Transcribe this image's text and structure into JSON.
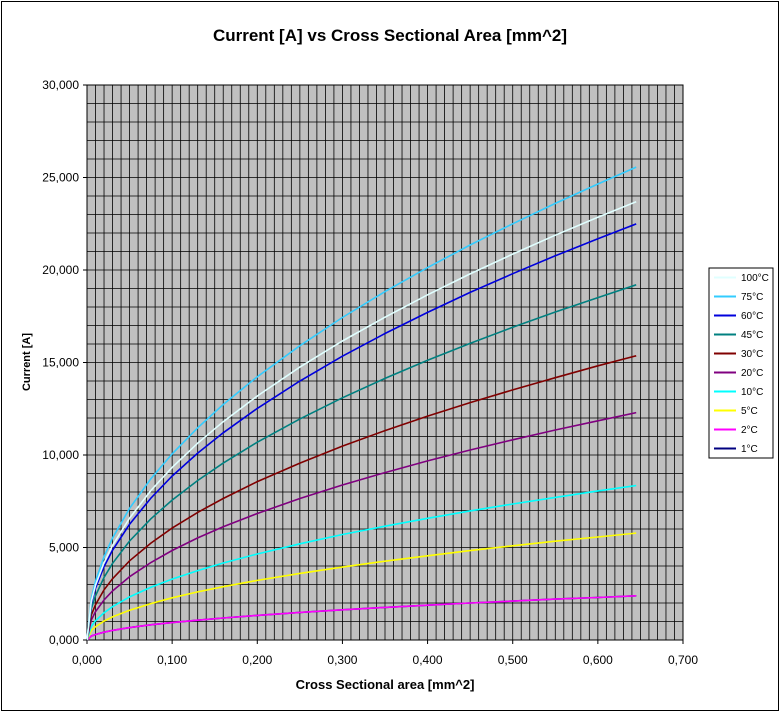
{
  "chart_data": {
    "type": "line",
    "title": "Current [A] vs Cross Sectional Area [mm^2]",
    "xlabel": "Cross Sectional area [mm^2]",
    "ylabel": "Current [A]",
    "xlim": [
      0,
      0.7
    ],
    "ylim": [
      0,
      30000
    ],
    "x_ticks": [
      "0,000",
      "0,100",
      "0,200",
      "0,300",
      "0,400",
      "0,500",
      "0,600",
      "0,700"
    ],
    "y_ticks": [
      "0,000",
      "5,000",
      "10,000",
      "15,000",
      "20,000",
      "25,000",
      "30,000"
    ],
    "grid": true,
    "plot_background": "#c0c0c0",
    "legend_position": "right",
    "x": [
      0.0,
      0.005,
      0.01,
      0.02,
      0.03,
      0.05,
      0.075,
      0.1,
      0.13,
      0.16,
      0.2,
      0.25,
      0.3,
      0.35,
      0.4,
      0.45,
      0.5,
      0.55,
      0.6,
      0.645
    ],
    "series": [
      {
        "name": "100°C",
        "color": "#e0ffff",
        "values": [
          0,
          2080,
          2950,
          4170,
          5110,
          6590,
          8080,
          9330,
          10640,
          11800,
          13190,
          14750,
          16160,
          17450,
          18660,
          19790,
          20860,
          21880,
          22850,
          23690
        ]
      },
      {
        "name": "75°C",
        "color": "#33ccff",
        "values": [
          0,
          2250,
          3180,
          4500,
          5510,
          7120,
          8720,
          10060,
          11470,
          12730,
          14230,
          15910,
          17430,
          18830,
          20130,
          21350,
          22500,
          23600,
          24650,
          25560
        ]
      },
      {
        "name": "60°C",
        "color": "#0000dd",
        "values": [
          0,
          1980,
          2800,
          3960,
          4850,
          6260,
          7670,
          8860,
          10100,
          11200,
          12520,
          14000,
          15340,
          16570,
          17710,
          18790,
          19800,
          20770,
          21690,
          22490
        ]
      },
      {
        "name": "45°C",
        "color": "#008080",
        "values": [
          0,
          1690,
          2390,
          3380,
          4140,
          5350,
          6550,
          7560,
          8620,
          9560,
          10690,
          11950,
          13090,
          14140,
          15120,
          16030,
          16900,
          17730,
          18510,
          19200
        ]
      },
      {
        "name": "30°C",
        "color": "#800000",
        "values": [
          0,
          1350,
          1910,
          2710,
          3310,
          4280,
          5240,
          6050,
          6900,
          7650,
          8560,
          9560,
          10480,
          11320,
          12100,
          12830,
          13520,
          14180,
          14820,
          15360
        ]
      },
      {
        "name": "20°C",
        "color": "#800080",
        "values": [
          0,
          1080,
          1530,
          2160,
          2650,
          3420,
          4190,
          4840,
          5520,
          6120,
          6840,
          7650,
          8380,
          9050,
          9680,
          10270,
          10820,
          11350,
          11850,
          12290
        ]
      },
      {
        "name": "10°C",
        "color": "#00ffff",
        "values": [
          0,
          740,
          1040,
          1470,
          1800,
          2330,
          2850,
          3290,
          3750,
          4160,
          4650,
          5200,
          5700,
          6150,
          6580,
          6980,
          7350,
          7710,
          8060,
          8350
        ]
      },
      {
        "name": "5°C",
        "color": "#ffff00",
        "values": [
          0,
          510,
          720,
          1020,
          1250,
          1610,
          1970,
          2280,
          2600,
          2880,
          3220,
          3600,
          3940,
          4260,
          4550,
          4830,
          5090,
          5340,
          5570,
          5780
        ]
      },
      {
        "name": "2°C",
        "color": "#ff00ff",
        "values": [
          0,
          210,
          300,
          420,
          520,
          670,
          820,
          940,
          1070,
          1190,
          1330,
          1490,
          1630,
          1760,
          1880,
          2000,
          2100,
          2210,
          2300,
          2390
        ]
      },
      {
        "name": "1°C",
        "color": "#000080",
        "values": [
          0,
          210,
          300,
          420,
          520,
          670,
          820,
          940,
          1070,
          1190,
          1330,
          1490,
          1630,
          1760,
          1880,
          2000,
          2100,
          2210,
          2300,
          2390
        ]
      }
    ]
  }
}
